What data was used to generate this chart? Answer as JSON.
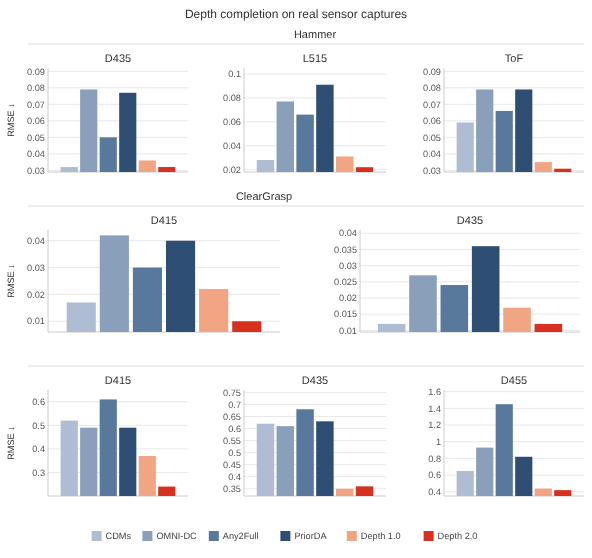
{
  "chart_data": [
    {
      "type": "bar",
      "title": "D435",
      "annotations": [
        "Depth completion on real sensor captures"
      ],
      "ylabel": "RMSE ↓",
      "categories": [
        null
      ],
      "ylim": [
        0.029,
        0.092
      ],
      "yticks": [
        0.03,
        0.04,
        0.05,
        0.06,
        0.07,
        0.08,
        0.09
      ],
      "grid": "y",
      "series": [
        {
          "color": "#aebdd3",
          "values": [
            0.032
          ]
        },
        {
          "color": "#8a9fb9",
          "values": [
            0.079
          ]
        },
        {
          "color": "#58799b",
          "values": [
            0.05
          ]
        },
        {
          "color": "#2f4e74",
          "values": [
            0.077
          ]
        },
        {
          "color": "#f2a582",
          "values": [
            0.036
          ]
        },
        {
          "color": "#d7301f",
          "values": [
            0.032
          ]
        }
      ]
    },
    {
      "type": "bar",
      "title": "L515",
      "annotations": [
        "Hammer"
      ],
      "categories": [
        null
      ],
      "ylim": [
        0.018,
        0.105
      ],
      "yticks": [
        0.02,
        0.04,
        0.06,
        0.08,
        0.1
      ],
      "grid": "y",
      "series": [
        {
          "color": "#aebdd3",
          "values": [
            0.028
          ]
        },
        {
          "color": "#8a9fb9",
          "values": [
            0.077
          ]
        },
        {
          "color": "#58799b",
          "values": [
            0.066
          ]
        },
        {
          "color": "#2f4e74",
          "values": [
            0.091
          ]
        },
        {
          "color": "#f2a582",
          "values": [
            0.031
          ]
        },
        {
          "color": "#d7301f",
          "values": [
            0.022
          ]
        }
      ]
    },
    {
      "type": "bar",
      "title": "ToF",
      "categories": [
        null
      ],
      "ylim": [
        0.029,
        0.092
      ],
      "yticks": [
        0.03,
        0.04,
        0.05,
        0.06,
        0.07,
        0.08,
        0.09
      ],
      "grid": "y",
      "series": [
        {
          "color": "#aebdd3",
          "values": [
            0.059
          ]
        },
        {
          "color": "#8a9fb9",
          "values": [
            0.079
          ]
        },
        {
          "color": "#58799b",
          "values": [
            0.066
          ]
        },
        {
          "color": "#2f4e74",
          "values": [
            0.079
          ]
        },
        {
          "color": "#f2a582",
          "values": [
            0.035
          ]
        },
        {
          "color": "#d7301f",
          "values": [
            0.031
          ]
        }
      ]
    },
    {
      "type": "bar",
      "title": "D415",
      "annotations": [
        "ClearGrasp"
      ],
      "ylabel": "RMSE ↓",
      "categories": [
        null
      ],
      "ylim": [
        0.006,
        0.044
      ],
      "yticks": [
        0.01,
        0.02,
        0.03,
        0.04
      ],
      "grid": "y",
      "series": [
        {
          "color": "#aebdd3",
          "values": [
            0.017
          ]
        },
        {
          "color": "#8a9fb9",
          "values": [
            0.042
          ]
        },
        {
          "color": "#58799b",
          "values": [
            0.03
          ]
        },
        {
          "color": "#2f4e74",
          "values": [
            0.04
          ]
        },
        {
          "color": "#f2a582",
          "values": [
            0.022
          ]
        },
        {
          "color": "#d7301f",
          "values": [
            0.01
          ]
        }
      ]
    },
    {
      "type": "bar",
      "title": "D435",
      "categories": [
        null
      ],
      "ylim": [
        0.0095,
        0.041
      ],
      "yticks": [
        0.01,
        0.015,
        0.02,
        0.025,
        0.03,
        0.035,
        0.04
      ],
      "grid": "y",
      "series": [
        {
          "color": "#aebdd3",
          "values": [
            0.012
          ]
        },
        {
          "color": "#8a9fb9",
          "values": [
            0.027
          ]
        },
        {
          "color": "#58799b",
          "values": [
            0.024
          ]
        },
        {
          "color": "#2f4e74",
          "values": [
            0.036
          ]
        },
        {
          "color": "#f2a582",
          "values": [
            0.017
          ]
        },
        {
          "color": "#d7301f",
          "values": [
            0.012
          ]
        }
      ]
    },
    {
      "type": "bar",
      "title": "D415",
      "ylabel": "RMSE ↓",
      "categories": [
        null
      ],
      "ylim": [
        0.2,
        0.65
      ],
      "yticks": [
        0.3,
        0.4,
        0.5,
        0.6
      ],
      "grid": "y",
      "series": [
        {
          "color": "#aebdd3",
          "values": [
            0.52
          ]
        },
        {
          "color": "#8a9fb9",
          "values": [
            0.49
          ]
        },
        {
          "color": "#58799b",
          "values": [
            0.61
          ]
        },
        {
          "color": "#2f4e74",
          "values": [
            0.49
          ]
        },
        {
          "color": "#f2a582",
          "values": [
            0.37
          ]
        },
        {
          "color": "#d7301f",
          "values": [
            0.24
          ]
        }
      ]
    },
    {
      "type": "bar",
      "title": "D435",
      "categories": [
        null
      ],
      "ylim": [
        0.32,
        0.76
      ],
      "yticks": [
        0.35,
        0.4,
        0.45,
        0.5,
        0.55,
        0.6,
        0.65,
        0.7,
        0.75
      ],
      "grid": "y",
      "series": [
        {
          "color": "#aebdd3",
          "values": [
            0.62
          ]
        },
        {
          "color": "#8a9fb9",
          "values": [
            0.61
          ]
        },
        {
          "color": "#58799b",
          "values": [
            0.68
          ]
        },
        {
          "color": "#2f4e74",
          "values": [
            0.63
          ]
        },
        {
          "color": "#f2a582",
          "values": [
            0.35
          ]
        },
        {
          "color": "#d7301f",
          "values": [
            0.36
          ]
        }
      ]
    },
    {
      "type": "bar",
      "title": "D455",
      "categories": [
        null
      ],
      "ylim": [
        0.35,
        1.62
      ],
      "yticks": [
        0.4,
        0.6,
        0.8,
        1.0,
        1.2,
        1.4,
        1.6
      ],
      "grid": "y",
      "legend": "bottom",
      "series": [
        {
          "name": "CDMs",
          "color": "#aebdd3",
          "values": [
            0.65
          ]
        },
        {
          "name": "OMNI-DC",
          "color": "#8a9fb9",
          "values": [
            0.93
          ]
        },
        {
          "name": "Any2Full",
          "color": "#58799b",
          "values": [
            1.45
          ]
        },
        {
          "name": "PriorDA",
          "color": "#2f4e74",
          "values": [
            0.82
          ]
        },
        {
          "name": "Depth 1.0",
          "color": "#f2a582",
          "values": [
            0.44
          ]
        },
        {
          "name": "Depth 2.0",
          "color": "#d7301f",
          "values": [
            0.42
          ]
        }
      ]
    }
  ]
}
